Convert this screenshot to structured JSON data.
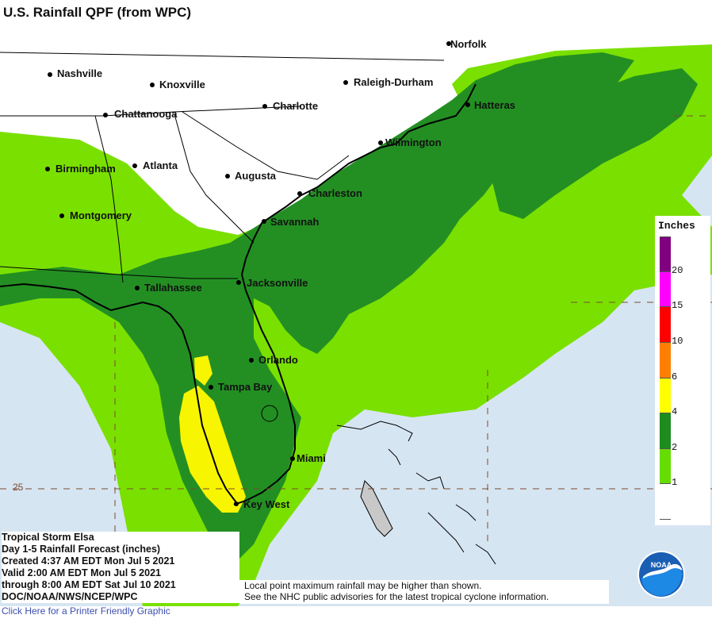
{
  "title": "U.S. Rainfall QPF (from WPC)",
  "cities": [
    {
      "name": "Nashville"
    },
    {
      "name": "Knoxville"
    },
    {
      "name": "Raleigh-Durham"
    },
    {
      "name": "Norfolk"
    },
    {
      "name": "Charlotte"
    },
    {
      "name": "Chattanooga"
    },
    {
      "name": "Hatteras"
    },
    {
      "name": "Wilmington"
    },
    {
      "name": "Birmingham"
    },
    {
      "name": "Atlanta"
    },
    {
      "name": "Augusta"
    },
    {
      "name": "Charleston"
    },
    {
      "name": "Montgomery"
    },
    {
      "name": "Savannah"
    },
    {
      "name": "Tallahassee"
    },
    {
      "name": "Jacksonville"
    },
    {
      "name": "Orlando"
    },
    {
      "name": "Tampa Bay"
    },
    {
      "name": "Miami"
    },
    {
      "name": "Key West"
    }
  ],
  "latitude_label": "25",
  "legend": {
    "title": "Inches",
    "thresholds": [
      "20",
      "15",
      "10",
      "6",
      "4",
      "2",
      "1"
    ],
    "colors": [
      "#800080",
      "#ff00ff",
      "#ff0000",
      "#ff8000",
      "#ffff00",
      "#1e8c1e",
      "#66dd00",
      "#ffffff"
    ]
  },
  "colors": {
    "water": "#d6e5f2",
    "land_dry": "#ffffff",
    "rain_1_2": "#7ae000",
    "rain_2_4": "#238f23",
    "rain_4_6": "#f8f500",
    "bahamas_land": "#c8c8c8"
  },
  "info": {
    "lines": [
      "Tropical Storm Elsa",
      "Day 1-5 Rainfall Forecast (inches)",
      "Created 4:37 AM EDT Mon Jul 5 2021",
      "Valid 2:00 AM EDT Mon Jul 5 2021",
      "through 8:00 AM EDT Sat Jul 10 2021",
      "DOC/NOAA/NWS/NCEP/WPC"
    ]
  },
  "note": {
    "lines": [
      "Local point maximum rainfall may be higher than shown.",
      "See the NHC public advisories for the latest tropical cyclone information."
    ]
  },
  "printer_link": "Click Here for a Printer Friendly Graphic",
  "logo": {
    "text": "NOAA",
    "icon": "noaa-logo-icon"
  }
}
